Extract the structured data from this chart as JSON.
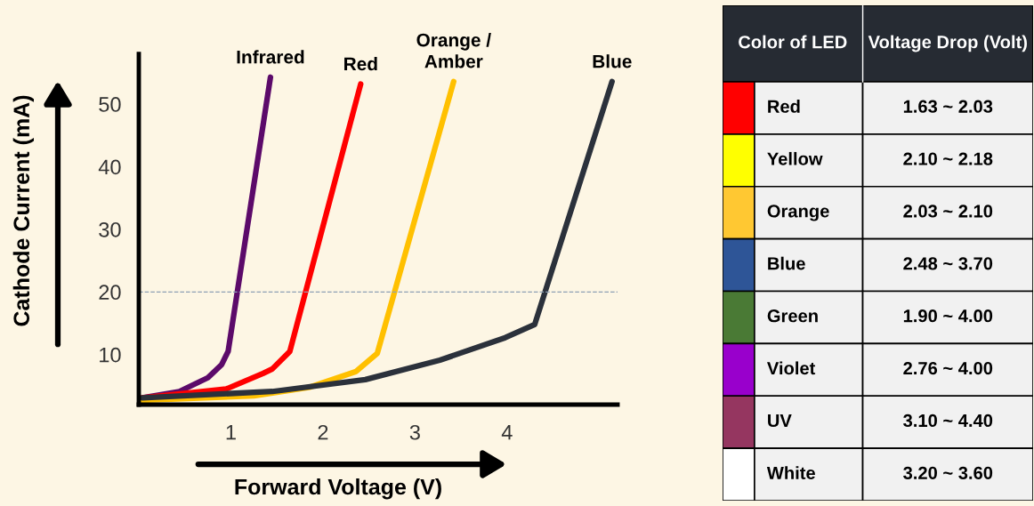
{
  "chart_data": [
    {
      "type": "line",
      "xlabel": "Forward Voltage (V)",
      "ylabel": "Cathode Current (mA)",
      "xlim": [
        0,
        5.2
      ],
      "ylim": [
        2,
        58
      ],
      "xticks": [
        1,
        2,
        3,
        4
      ],
      "yticks": [
        10,
        20,
        30,
        40,
        50
      ],
      "grid": false,
      "legend": false,
      "marker": "none",
      "line_style": "solid",
      "ref_lines": [
        {
          "axis": "y",
          "value": 20,
          "label": null,
          "color": "#8ea0b4",
          "line_style": "dashed"
        }
      ],
      "series": [
        {
          "name": "Infrared",
          "color": "#5c0a6a",
          "x": [
            0.04,
            0.44,
            0.75,
            0.9,
            0.97,
            1.43
          ],
          "values": [
            3.1,
            4.1,
            6.3,
            8.4,
            10.5,
            54.3
          ]
        },
        {
          "name": "Red",
          "color": "#ff0000",
          "x": [
            0.04,
            0.95,
            1.35,
            1.45,
            1.64,
            2.41
          ],
          "values": [
            3.1,
            4.5,
            7,
            7.7,
            10.5,
            53.2
          ]
        },
        {
          "name": "Orange /\nAmber",
          "color": "#ffc000",
          "x": [
            0.04,
            1.25,
            1.86,
            2.36,
            2.59,
            3.42
          ],
          "values": [
            2.7,
            3.4,
            4.8,
            7.3,
            10.2,
            53.6
          ]
        },
        {
          "name": "Blue",
          "color": "#2b313b",
          "x": [
            0.04,
            1.45,
            2.46,
            3.27,
            3.98,
            4.3,
            5.14
          ],
          "values": [
            3.1,
            4.1,
            6,
            9.1,
            12.7,
            14.8,
            53.6
          ]
        }
      ]
    },
    {
      "type": "other",
      "annotations": [
        "Color of LED",
        "Voltage Drop (Volt)",
        "Red",
        "1.63 ~ 2.03",
        "Yellow",
        "2.10 ~ 2.18",
        "Orange",
        "2.03 ~ 2.10",
        "Blue",
        "2.48 ~ 3.70",
        "Green",
        "1.90 ~ 4.00",
        "Violet",
        "2.76 ~ 4.00",
        "UV",
        "3.10 ~ 4.40",
        "White",
        "3.20 ~ 3.60"
      ]
    }
  ]
}
